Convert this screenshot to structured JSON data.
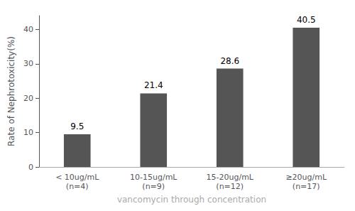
{
  "chart_data": {
    "type": "bar",
    "categories": [
      "< 10ug/mL\n(n=4)",
      "10-15ug/mL\n(n=9)",
      "15-20ug/mL\n(n=12)",
      "≥20ug/mL\n(n=17)"
    ],
    "values": [
      9.5,
      21.4,
      28.6,
      40.5
    ],
    "color": "#555555",
    "xlabel": "vancomycin through concentration",
    "ylabel": "Rate of Nephrotoxicity(%)",
    "ylim": [
      0,
      44
    ],
    "yticks": [
      0,
      10,
      20,
      30,
      40
    ],
    "grid": false,
    "data_labels": true
  }
}
